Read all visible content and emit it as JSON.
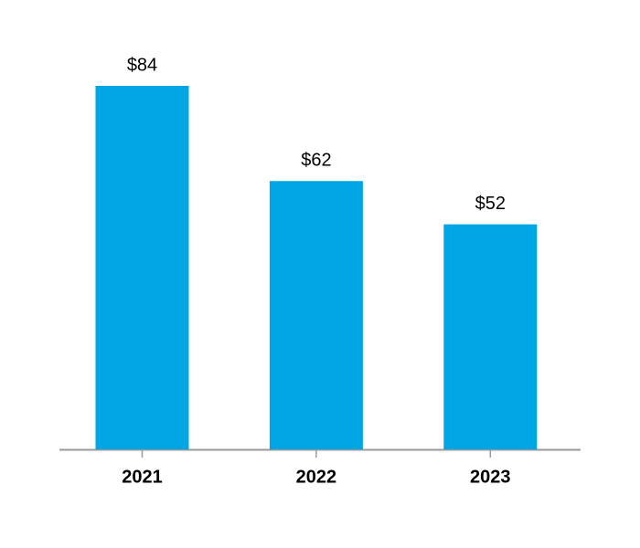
{
  "chart_data": {
    "type": "bar",
    "categories": [
      "2021",
      "2022",
      "2023"
    ],
    "values": [
      84,
      62,
      52
    ],
    "value_labels": [
      "$84",
      "$62",
      "$52"
    ],
    "color": "#00a5e3"
  }
}
